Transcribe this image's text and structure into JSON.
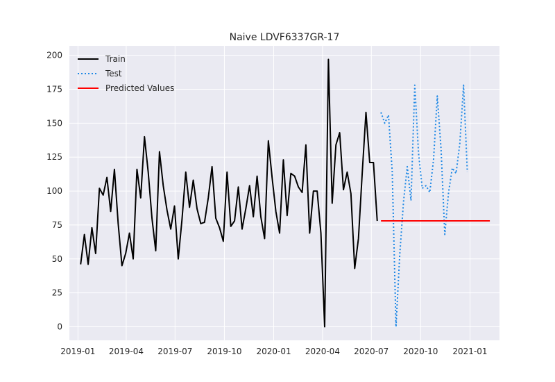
{
  "chart_data": {
    "type": "line",
    "title": "Naive LDVF6337GR-17",
    "xlabel": "",
    "ylabel": "",
    "x_ticks": [
      "2019-01",
      "2019-04",
      "2019-07",
      "2019-10",
      "2020-01",
      "2020-04",
      "2020-07",
      "2020-10",
      "2021-01"
    ],
    "y_ticks": [
      0,
      25,
      50,
      75,
      100,
      125,
      150,
      175,
      200
    ],
    "xlim": [
      "2018-12-16",
      "2021-02-25"
    ],
    "ylim": [
      -10,
      207
    ],
    "grid": true,
    "legend_position": "top-left",
    "series": [
      {
        "name": "Train",
        "color": "#000000",
        "style": "solid",
        "points": [
          [
            "2019-01-06",
            46
          ],
          [
            "2019-01-13",
            68
          ],
          [
            "2019-01-20",
            46
          ],
          [
            "2019-01-27",
            73
          ],
          [
            "2019-02-03",
            54
          ],
          [
            "2019-02-10",
            102
          ],
          [
            "2019-02-17",
            97
          ],
          [
            "2019-02-24",
            110
          ],
          [
            "2019-03-03",
            85
          ],
          [
            "2019-03-10",
            116
          ],
          [
            "2019-03-17",
            76
          ],
          [
            "2019-03-24",
            45
          ],
          [
            "2019-03-31",
            54
          ],
          [
            "2019-04-07",
            69
          ],
          [
            "2019-04-14",
            50
          ],
          [
            "2019-04-21",
            116
          ],
          [
            "2019-04-28",
            95
          ],
          [
            "2019-05-05",
            140
          ],
          [
            "2019-05-12",
            114
          ],
          [
            "2019-05-19",
            80
          ],
          [
            "2019-05-26",
            56
          ],
          [
            "2019-06-02",
            129
          ],
          [
            "2019-06-09",
            104
          ],
          [
            "2019-06-16",
            86
          ],
          [
            "2019-06-23",
            72
          ],
          [
            "2019-06-30",
            89
          ],
          [
            "2019-07-07",
            50
          ],
          [
            "2019-07-14",
            79
          ],
          [
            "2019-07-21",
            114
          ],
          [
            "2019-07-28",
            88
          ],
          [
            "2019-08-04",
            108
          ],
          [
            "2019-08-11",
            87
          ],
          [
            "2019-08-18",
            76
          ],
          [
            "2019-08-25",
            77
          ],
          [
            "2019-09-01",
            95
          ],
          [
            "2019-09-08",
            118
          ],
          [
            "2019-09-15",
            80
          ],
          [
            "2019-09-22",
            73
          ],
          [
            "2019-09-29",
            63
          ],
          [
            "2019-10-06",
            114
          ],
          [
            "2019-10-13",
            74
          ],
          [
            "2019-10-20",
            78
          ],
          [
            "2019-10-27",
            103
          ],
          [
            "2019-11-03",
            72
          ],
          [
            "2019-11-10",
            87
          ],
          [
            "2019-11-17",
            104
          ],
          [
            "2019-11-24",
            81
          ],
          [
            "2019-12-01",
            111
          ],
          [
            "2019-12-08",
            81
          ],
          [
            "2019-12-15",
            65
          ],
          [
            "2019-12-22",
            137
          ],
          [
            "2019-12-29",
            110
          ],
          [
            "2020-01-05",
            85
          ],
          [
            "2020-01-12",
            69
          ],
          [
            "2020-01-19",
            123
          ],
          [
            "2020-01-26",
            82
          ],
          [
            "2020-02-02",
            113
          ],
          [
            "2020-02-09",
            111
          ],
          [
            "2020-02-16",
            103
          ],
          [
            "2020-02-23",
            99
          ],
          [
            "2020-03-01",
            134
          ],
          [
            "2020-03-08",
            69
          ],
          [
            "2020-03-15",
            100
          ],
          [
            "2020-03-22",
            100
          ],
          [
            "2020-03-29",
            69
          ],
          [
            "2020-04-05",
            0
          ],
          [
            "2020-04-12",
            197
          ],
          [
            "2020-04-19",
            91
          ],
          [
            "2020-04-26",
            134
          ],
          [
            "2020-05-03",
            143
          ],
          [
            "2020-05-10",
            101
          ],
          [
            "2020-05-17",
            114
          ],
          [
            "2020-05-24",
            98
          ],
          [
            "2020-05-31",
            43
          ],
          [
            "2020-06-07",
            65
          ],
          [
            "2020-06-14",
            113
          ],
          [
            "2020-06-21",
            158
          ],
          [
            "2020-06-28",
            121
          ],
          [
            "2020-07-05",
            121
          ],
          [
            "2020-07-12",
            78
          ]
        ]
      },
      {
        "name": "Test",
        "color": "#1e88e5",
        "style": "dotted",
        "points": [
          [
            "2020-07-19",
            158
          ],
          [
            "2020-07-26",
            150
          ],
          [
            "2020-08-02",
            156
          ],
          [
            "2020-08-09",
            114
          ],
          [
            "2020-08-16",
            0
          ],
          [
            "2020-08-23",
            53
          ],
          [
            "2020-08-30",
            92
          ],
          [
            "2020-09-06",
            118
          ],
          [
            "2020-09-13",
            93
          ],
          [
            "2020-09-20",
            178
          ],
          [
            "2020-09-27",
            128
          ],
          [
            "2020-10-04",
            102
          ],
          [
            "2020-10-11",
            104
          ],
          [
            "2020-10-18",
            99
          ],
          [
            "2020-10-25",
            123
          ],
          [
            "2020-11-01",
            170
          ],
          [
            "2020-11-08",
            131
          ],
          [
            "2020-11-15",
            68
          ],
          [
            "2020-11-22",
            99
          ],
          [
            "2020-11-29",
            117
          ],
          [
            "2020-12-06",
            113
          ],
          [
            "2020-12-13",
            135
          ],
          [
            "2020-12-20",
            178
          ],
          [
            "2020-12-27",
            114
          ]
        ]
      },
      {
        "name": "Predicted Values",
        "color": "#ff0000",
        "style": "solid",
        "points": [
          [
            "2020-07-19",
            78
          ],
          [
            "2021-02-07",
            78
          ]
        ]
      }
    ]
  }
}
